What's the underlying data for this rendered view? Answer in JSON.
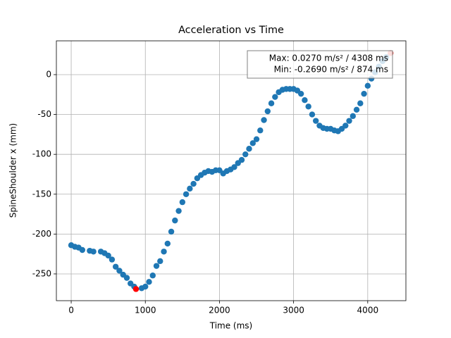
{
  "chart_data": {
    "type": "scatter",
    "title": "Acceleration vs Time",
    "x_label": "Time (ms)",
    "y_label": "SpineShoulder x (mm)",
    "xlim": [
      -200,
      4515
    ],
    "ylim": [
      -283.6,
      42.4
    ],
    "xticks": [
      0,
      1000,
      2000,
      3000,
      4000
    ],
    "yticks": [
      0,
      -50,
      -100,
      -150,
      -200,
      -250
    ],
    "grid": true,
    "series": [
      {
        "color": "#1f77b4",
        "x": [
          0,
          50,
          100,
          150,
          250,
          300,
          400,
          450,
          500,
          550,
          600,
          650,
          700,
          750,
          800,
          850,
          950,
          1000,
          1050,
          1100,
          1150,
          1200,
          1250,
          1300,
          1350,
          1400,
          1450,
          1500,
          1550,
          1600,
          1650,
          1700,
          1750,
          1800,
          1850,
          1900,
          1950,
          2000,
          2050,
          2100,
          2150,
          2200,
          2250,
          2300,
          2350,
          2400,
          2450,
          2500,
          2550,
          2600,
          2650,
          2700,
          2750,
          2800,
          2850,
          2900,
          2950,
          3000,
          3050,
          3100,
          3150,
          3200,
          3250,
          3300,
          3350,
          3400,
          3450,
          3500,
          3550,
          3600,
          3650,
          3700,
          3750,
          3800,
          3850,
          3900,
          3950,
          4000,
          4050,
          4100,
          4150,
          4200,
          4250
        ],
        "values": [
          -214,
          -216,
          -217,
          -220,
          -221,
          -222,
          -222,
          -224,
          -227,
          -232,
          -241,
          -246,
          -251,
          -255,
          -262,
          -266,
          -268,
          -266,
          -260,
          -252,
          -240,
          -234,
          -222,
          -212,
          -197,
          -183,
          -171,
          -160,
          -150,
          -143,
          -137,
          -130,
          -126,
          -123,
          -121,
          -122,
          -120,
          -120,
          -124,
          -121,
          -119,
          -116,
          -111,
          -107,
          -100,
          -93,
          -86,
          -81,
          -70,
          -57,
          -46,
          -36,
          -28,
          -22,
          -19,
          -18,
          -18,
          -18,
          -20,
          -24,
          -32,
          -40,
          -50,
          -58,
          -64,
          -67,
          -68,
          -68,
          -70,
          -71,
          -68,
          -64,
          -58,
          -52,
          -44,
          -36,
          -24,
          -14,
          -5,
          3,
          10,
          17,
          22
        ]
      }
    ],
    "highlights": [
      {
        "x": 874,
        "y": -269,
        "color": "#ff0000"
      },
      {
        "x": 4308,
        "y": 27,
        "color": "#e8574f"
      }
    ],
    "annotation": [
      "Max: 0.0270 m/s² / 4308 ms",
      "Min: -0.2690 m/s² / 874 ms"
    ]
  }
}
